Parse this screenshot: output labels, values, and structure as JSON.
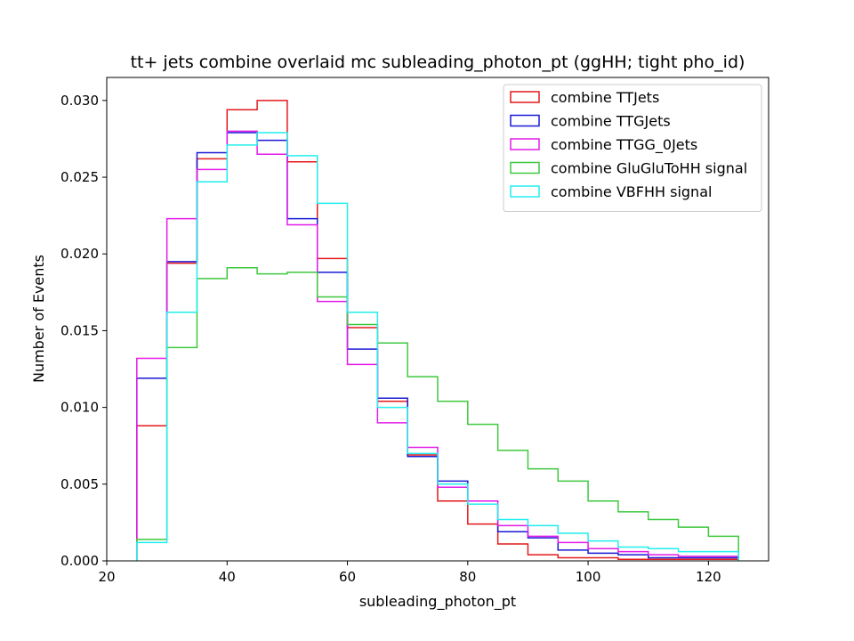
{
  "chart_data": {
    "type": "step-histogram",
    "title": "tt+ jets combine overlaid mc subleading_photon_pt (ggHH; tight pho_id)",
    "xlabel": "subleading_photon_pt",
    "ylabel": "Number of Events",
    "xlim": [
      20,
      130
    ],
    "ylim": [
      0,
      0.0315
    ],
    "xticks": [
      20,
      40,
      60,
      80,
      100,
      120
    ],
    "xtick_labels": [
      "20",
      "40",
      "60",
      "80",
      "100",
      "120"
    ],
    "yticks": [
      0,
      0.005,
      0.01,
      0.015,
      0.02,
      0.025,
      0.03
    ],
    "ytick_labels": [
      "0.000",
      "0.005",
      "0.010",
      "0.015",
      "0.020",
      "0.025",
      "0.030"
    ],
    "grid": false,
    "legend_position": "top-right",
    "bin_edges": [
      25,
      30,
      35,
      40,
      45,
      50,
      55,
      60,
      65,
      70,
      75,
      80,
      85,
      90,
      95,
      100,
      105,
      110,
      115,
      120,
      125
    ],
    "series": [
      {
        "name": "combine TTJets",
        "color": "#e41a1c",
        "values": [
          0.0088,
          0.0194,
          0.0262,
          0.0294,
          0.03,
          0.026,
          0.0197,
          0.0152,
          0.0104,
          0.0069,
          0.0039,
          0.0024,
          0.0011,
          0.0004,
          0.0002,
          0.0002,
          0.0001,
          0.0001,
          0.0001,
          0.0001
        ]
      },
      {
        "name": "combine TTGJets",
        "color": "#1a1ad6",
        "values": [
          0.0119,
          0.0195,
          0.0266,
          0.0279,
          0.0274,
          0.0223,
          0.0188,
          0.0138,
          0.0106,
          0.0068,
          0.0052,
          0.0037,
          0.0019,
          0.0015,
          0.0007,
          0.0005,
          0.0004,
          0.0002,
          0.0002,
          0.0002
        ]
      },
      {
        "name": "combine TTGG_0Jets",
        "color": "#e21be8",
        "values": [
          0.0132,
          0.0223,
          0.0255,
          0.028,
          0.0265,
          0.0219,
          0.0169,
          0.0128,
          0.009,
          0.0074,
          0.0048,
          0.0039,
          0.0023,
          0.0016,
          0.0012,
          0.0008,
          0.0006,
          0.0004,
          0.0003,
          0.0003
        ]
      },
      {
        "name": "combine GluGluToHH signal",
        "color": "#3fc83f",
        "values": [
          0.0014,
          0.0139,
          0.0184,
          0.0191,
          0.0187,
          0.0188,
          0.0172,
          0.0154,
          0.0142,
          0.012,
          0.0104,
          0.0089,
          0.0072,
          0.006,
          0.0052,
          0.0039,
          0.0032,
          0.0027,
          0.0022,
          0.0016
        ]
      },
      {
        "name": "combine VBFHH signal",
        "color": "#22eeee",
        "values": [
          0.0012,
          0.0162,
          0.0247,
          0.0271,
          0.0279,
          0.0264,
          0.0233,
          0.0162,
          0.01,
          0.007,
          0.005,
          0.0037,
          0.0027,
          0.0023,
          0.0018,
          0.0013,
          0.0009,
          0.0008,
          0.0006,
          0.0006
        ]
      }
    ]
  }
}
